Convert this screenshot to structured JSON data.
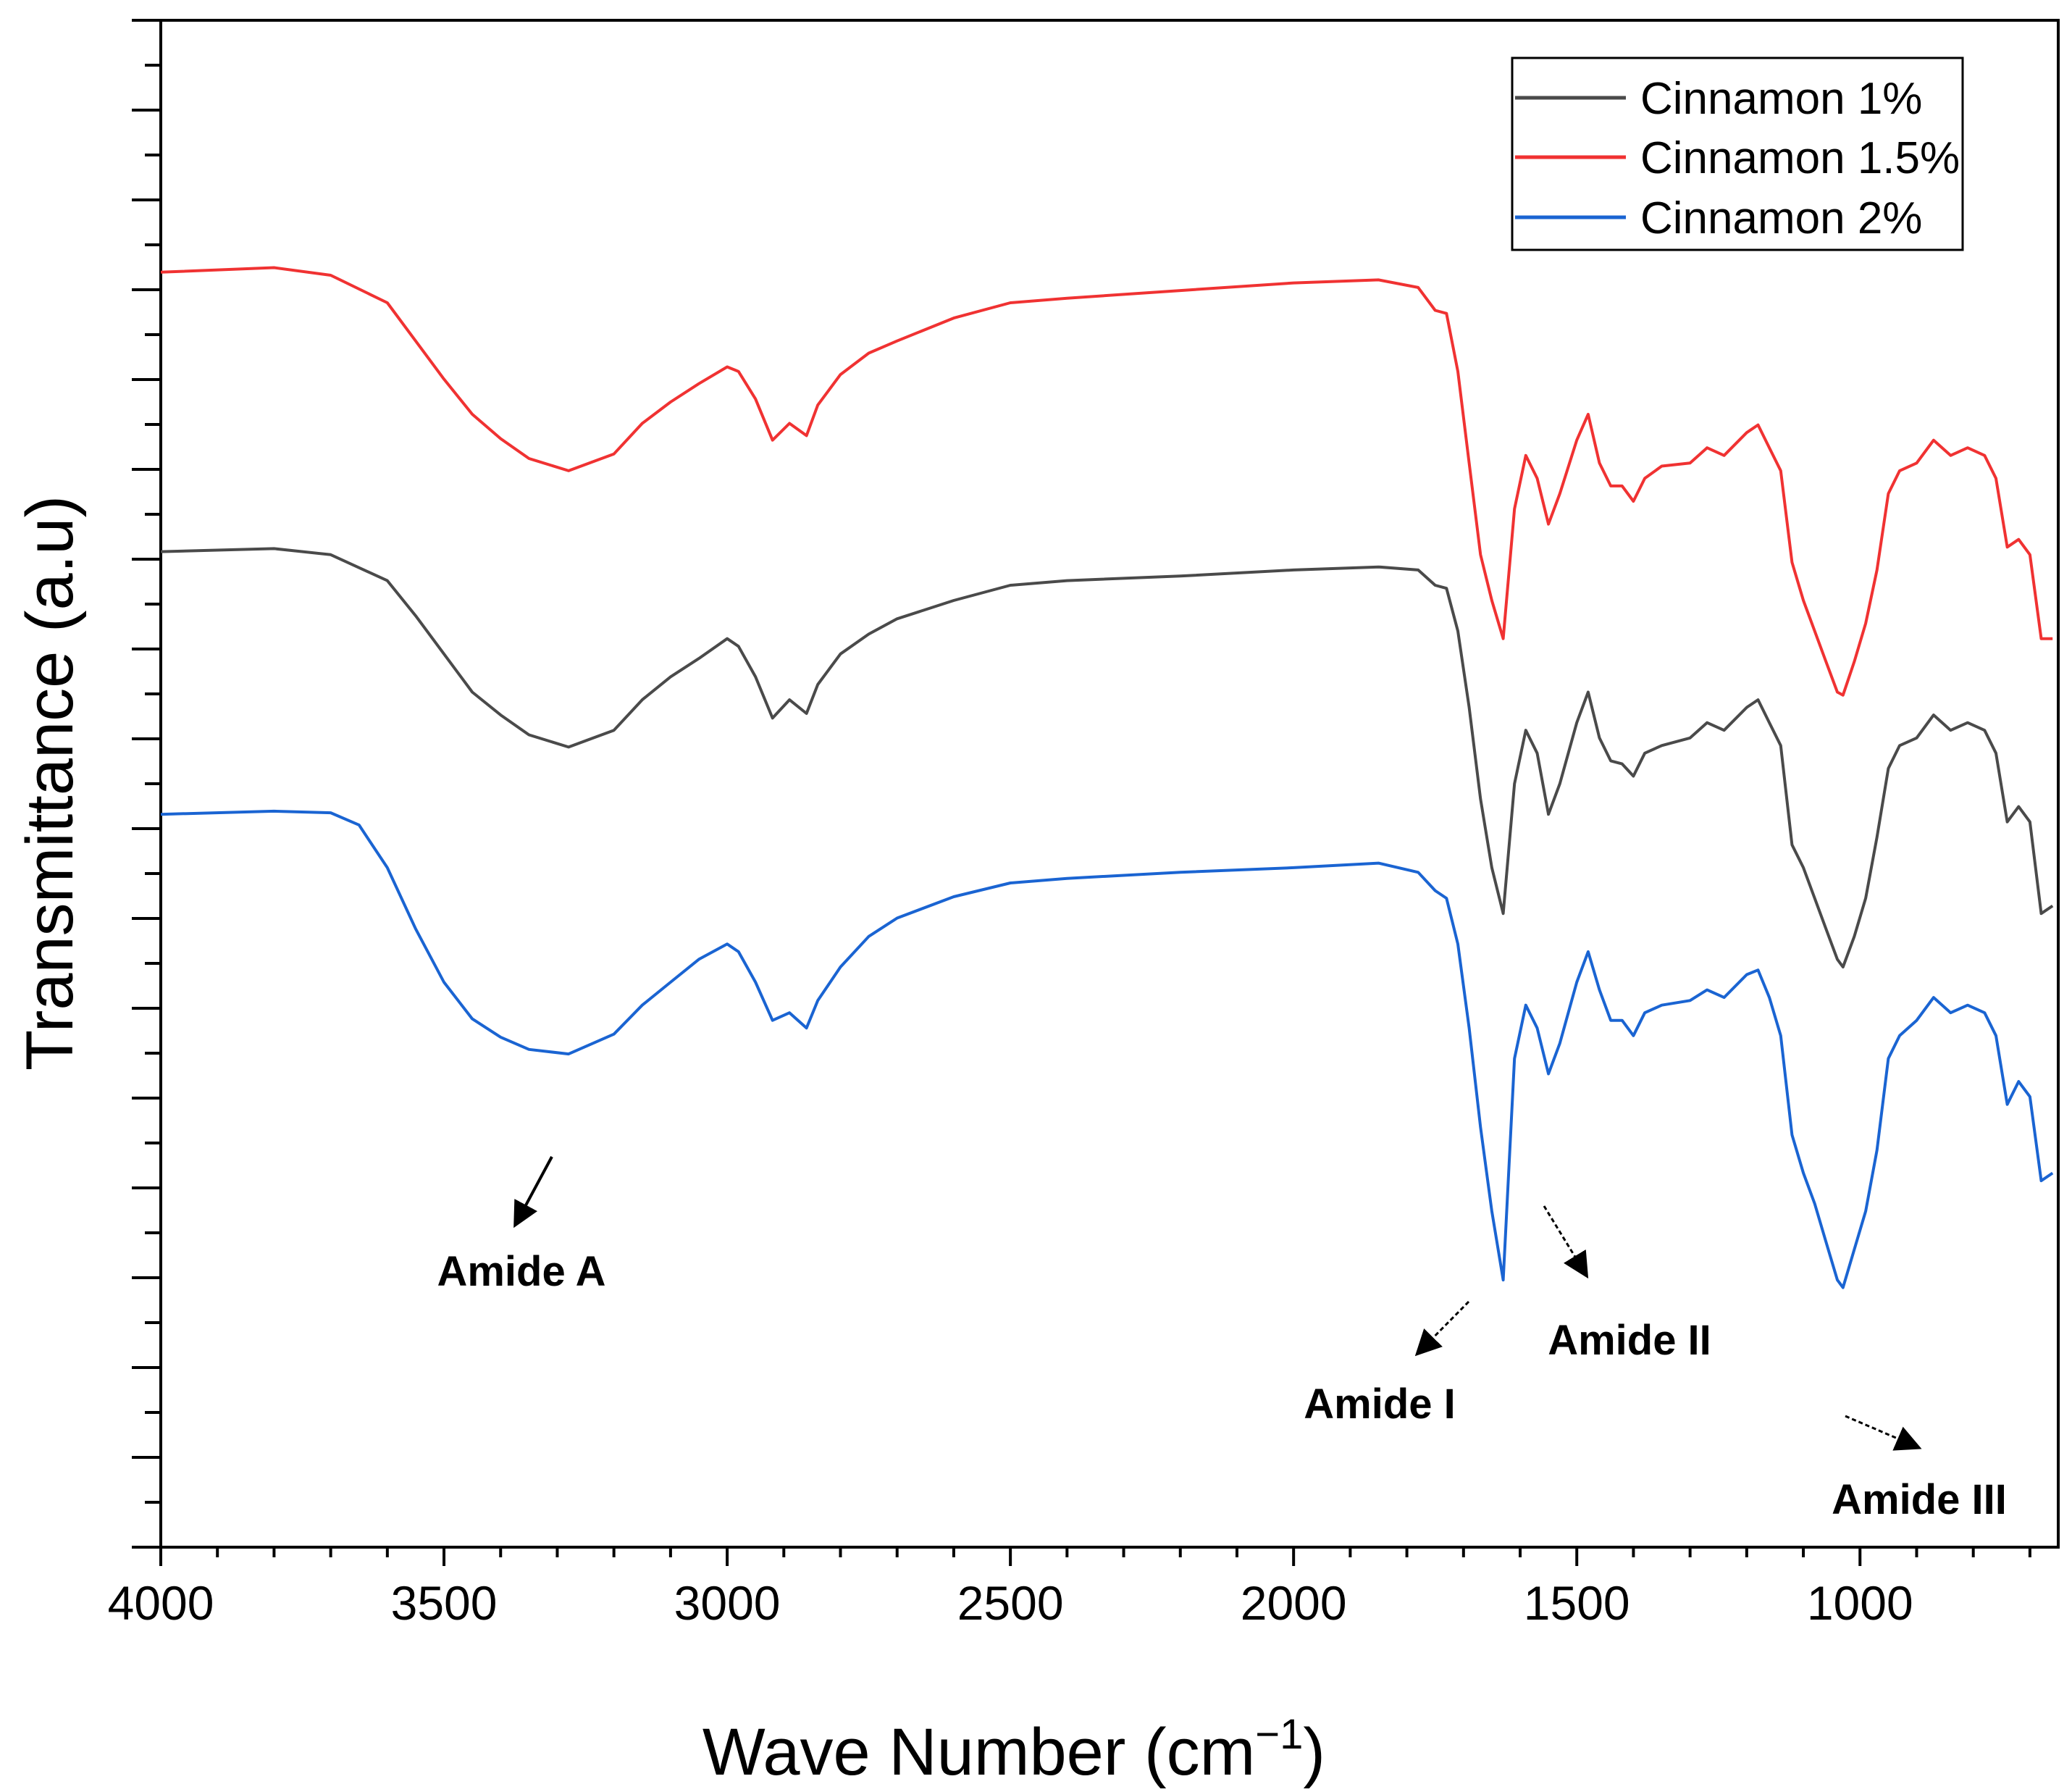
{
  "chart_data": {
    "type": "line",
    "title": "",
    "xlabel": "Wave Number (cm",
    "xlabel_superscript": "−1",
    "xlabel_close": ")",
    "ylabel": "Transmittance (a.u)",
    "xlim": [
      4000,
      650
    ],
    "x_reversed": true,
    "xticks": [
      4000,
      3500,
      3000,
      2500,
      2000,
      1500,
      1000
    ],
    "xtick_labels": [
      "4000",
      "3500",
      "3000",
      "2500",
      "2000",
      "1500",
      "1000"
    ],
    "y_tick_labels_shown": false,
    "ylim": [
      0,
      100
    ],
    "legend_position": "top-right",
    "series": [
      {
        "name": "Cinnamon 1%",
        "color": "#4a4a4a",
        "x": [
          4000,
          3800,
          3700,
          3600,
          3550,
          3500,
          3450,
          3400,
          3350,
          3280,
          3200,
          3150,
          3100,
          3050,
          3000,
          2980,
          2950,
          2920,
          2890,
          2860,
          2840,
          2800,
          2750,
          2700,
          2600,
          2500,
          2400,
          2200,
          2000,
          1850,
          1780,
          1750,
          1730,
          1710,
          1690,
          1670,
          1650,
          1630,
          1610,
          1590,
          1570,
          1550,
          1530,
          1500,
          1480,
          1460,
          1440,
          1420,
          1400,
          1380,
          1350,
          1300,
          1270,
          1240,
          1200,
          1180,
          1160,
          1140,
          1120,
          1100,
          1080,
          1060,
          1040,
          1030,
          1010,
          990,
          970,
          950,
          930,
          900,
          870,
          840,
          810,
          780,
          760,
          740,
          720,
          700,
          680,
          660
        ],
        "y": [
          65.2,
          65.4,
          65.0,
          63.3,
          61.0,
          58.5,
          56.0,
          54.5,
          53.2,
          52.4,
          53.5,
          55.5,
          57.0,
          58.2,
          59.5,
          59.0,
          57.0,
          54.3,
          55.5,
          54.6,
          56.5,
          58.5,
          59.8,
          60.8,
          62.0,
          63.0,
          63.3,
          63.6,
          64.0,
          64.2,
          64.0,
          63.0,
          62.8,
          60.0,
          55.0,
          49.0,
          44.5,
          41.5,
          50.0,
          53.5,
          52.0,
          48.0,
          50.0,
          54.0,
          56.0,
          53.0,
          51.5,
          51.3,
          50.5,
          52.0,
          52.5,
          53.0,
          54.0,
          53.5,
          55.0,
          55.5,
          54.0,
          52.5,
          46.0,
          44.5,
          42.5,
          40.5,
          38.5,
          38.0,
          40.0,
          42.5,
          46.5,
          51.0,
          52.5,
          53.0,
          54.5,
          53.5,
          54.0,
          53.5,
          52.0,
          47.5,
          48.5,
          47.5,
          41.5,
          42.0
        ]
      },
      {
        "name": "Cinnamon 1.5%",
        "color": "#f03232",
        "x": [
          4000,
          3800,
          3700,
          3600,
          3550,
          3500,
          3450,
          3400,
          3350,
          3280,
          3200,
          3150,
          3100,
          3050,
          3000,
          2980,
          2950,
          2920,
          2890,
          2860,
          2840,
          2800,
          2750,
          2700,
          2600,
          2500,
          2400,
          2200,
          2000,
          1850,
          1780,
          1750,
          1730,
          1710,
          1690,
          1670,
          1650,
          1630,
          1610,
          1590,
          1570,
          1550,
          1530,
          1500,
          1480,
          1460,
          1440,
          1420,
          1400,
          1380,
          1350,
          1300,
          1270,
          1240,
          1200,
          1180,
          1160,
          1140,
          1120,
          1100,
          1080,
          1060,
          1040,
          1030,
          1010,
          990,
          970,
          950,
          930,
          900,
          870,
          840,
          810,
          780,
          760,
          740,
          720,
          700,
          680,
          660
        ],
        "y": [
          83.5,
          83.8,
          83.3,
          81.5,
          79.0,
          76.5,
          74.2,
          72.6,
          71.3,
          70.5,
          71.6,
          73.6,
          75.0,
          76.2,
          77.3,
          77.0,
          75.2,
          72.5,
          73.6,
          72.8,
          74.8,
          76.8,
          78.2,
          79.0,
          80.5,
          81.5,
          81.8,
          82.3,
          82.8,
          83.0,
          82.5,
          81.0,
          80.8,
          77.0,
          71.0,
          65.0,
          62.0,
          59.5,
          68.0,
          71.5,
          70.0,
          67.0,
          69.0,
          72.5,
          74.2,
          71.0,
          69.5,
          69.5,
          68.5,
          70.0,
          70.8,
          71.0,
          72.0,
          71.5,
          73.0,
          73.5,
          72.0,
          70.5,
          64.5,
          62.0,
          60.0,
          58.0,
          56.0,
          55.8,
          58.0,
          60.5,
          64.0,
          69.0,
          70.5,
          71.0,
          72.5,
          71.5,
          72.0,
          71.5,
          70.0,
          65.5,
          66.0,
          65.0,
          59.5,
          59.5
        ]
      },
      {
        "name": "Cinnamon 2%",
        "color": "#1a64d2",
        "x": [
          4000,
          3800,
          3700,
          3650,
          3600,
          3550,
          3500,
          3450,
          3400,
          3350,
          3280,
          3200,
          3150,
          3100,
          3050,
          3000,
          2980,
          2950,
          2920,
          2890,
          2860,
          2840,
          2800,
          2750,
          2700,
          2600,
          2500,
          2400,
          2200,
          2000,
          1850,
          1780,
          1750,
          1730,
          1710,
          1690,
          1670,
          1650,
          1630,
          1610,
          1590,
          1570,
          1550,
          1530,
          1500,
          1480,
          1460,
          1440,
          1420,
          1400,
          1380,
          1350,
          1300,
          1270,
          1240,
          1200,
          1180,
          1160,
          1140,
          1120,
          1100,
          1080,
          1060,
          1040,
          1030,
          1010,
          990,
          970,
          950,
          930,
          900,
          870,
          840,
          810,
          780,
          760,
          740,
          720,
          700,
          680,
          660
        ],
        "y": [
          48.0,
          48.2,
          48.1,
          47.3,
          44.5,
          40.5,
          37.0,
          34.6,
          33.4,
          32.6,
          32.3,
          33.6,
          35.5,
          37.0,
          38.5,
          39.5,
          39.0,
          37.0,
          34.5,
          35.0,
          34.0,
          35.8,
          38.0,
          40.0,
          41.2,
          42.6,
          43.5,
          43.8,
          44.2,
          44.5,
          44.8,
          44.2,
          43.0,
          42.5,
          39.5,
          34.0,
          27.5,
          22.0,
          17.5,
          32.0,
          35.5,
          34.0,
          31.0,
          33.0,
          37.0,
          39.0,
          36.5,
          34.5,
          34.5,
          33.5,
          35.0,
          35.5,
          35.8,
          36.5,
          36.0,
          37.5,
          37.8,
          36.0,
          33.5,
          27.0,
          24.5,
          22.5,
          20.0,
          17.5,
          17.0,
          19.5,
          22.0,
          26.0,
          32.0,
          33.5,
          34.5,
          36.0,
          35.0,
          35.5,
          35.0,
          33.5,
          29.0,
          30.5,
          29.5,
          24.0,
          24.5
        ]
      }
    ],
    "annotations": [
      "Amide A",
      "Amide I",
      "Amide II",
      "Amide III"
    ]
  }
}
